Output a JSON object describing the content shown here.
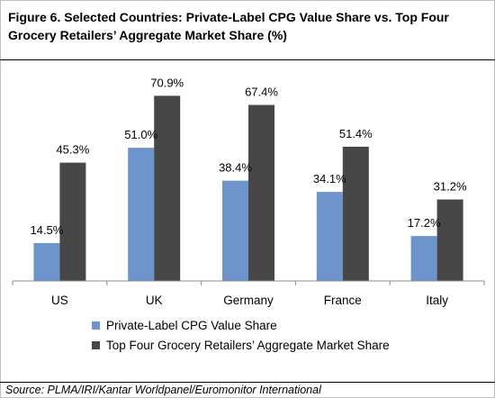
{
  "title": "Figure 6. Selected Countries: Private-Label CPG Value Share vs. Top Four Grocery Retailers’ Aggregate Market Share (%)",
  "source": "Source: PLMA/IRI/Kantar Worldpanel/Euromonitor International",
  "colors": {
    "private_label": "#6d95cc",
    "top_four": "#474747",
    "axis": "#8c8c8c"
  },
  "chart_data": {
    "type": "bar",
    "title": "Figure 6. Selected Countries: Private-Label CPG Value Share vs. Top Four Grocery Retailers’ Aggregate Market Share (%)",
    "xlabel": "",
    "ylabel": "",
    "categories": [
      "US",
      "UK",
      "Germany",
      "France",
      "Italy"
    ],
    "series": [
      {
        "name": "Private-Label CPG Value Share",
        "values": [
          14.5,
          51.0,
          38.4,
          34.1,
          17.2
        ],
        "labels": [
          "14.5%",
          "51.0%",
          "38.4%",
          "34.1%",
          "17.2%"
        ]
      },
      {
        "name": "Top Four Grocery Retailers’ Aggregate Market Share",
        "values": [
          45.3,
          70.9,
          67.4,
          51.4,
          31.2
        ],
        "labels": [
          "45.3%",
          "70.9%",
          "67.4%",
          "51.4%",
          "31.2%"
        ]
      }
    ],
    "ylim": [
      0,
      80
    ],
    "grid": false,
    "legend_position": "bottom-left"
  }
}
